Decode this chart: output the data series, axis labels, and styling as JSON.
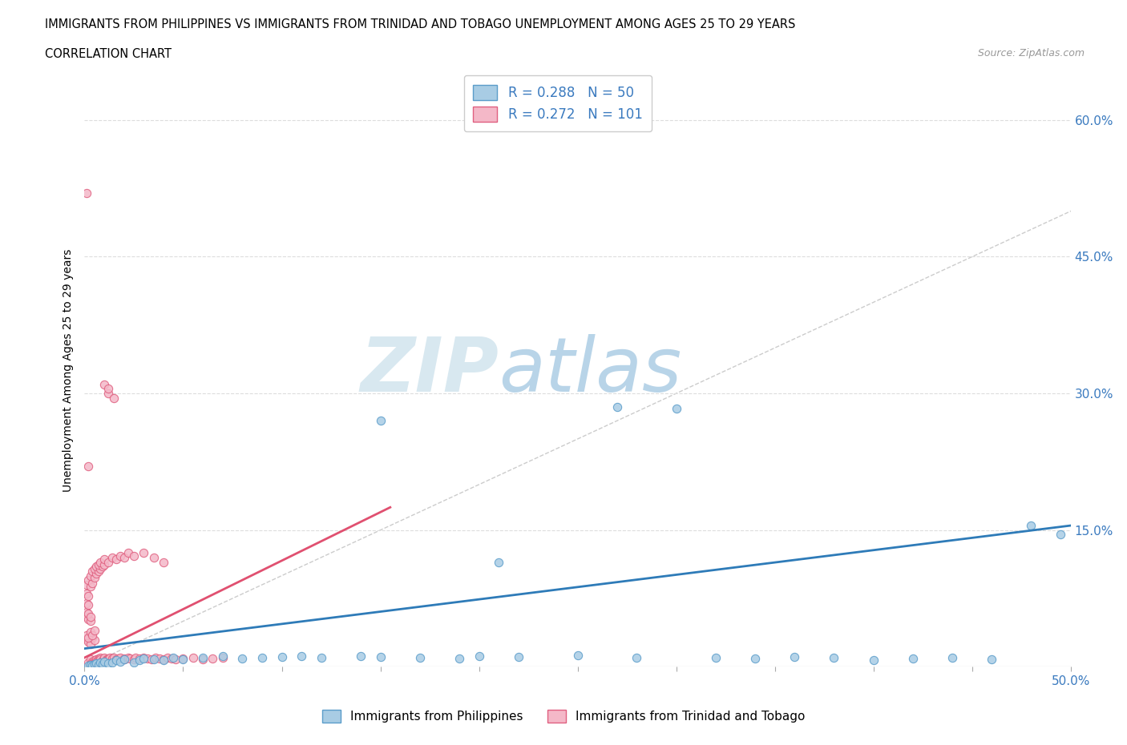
{
  "title_line1": "IMMIGRANTS FROM PHILIPPINES VS IMMIGRANTS FROM TRINIDAD AND TOBAGO UNEMPLOYMENT AMONG AGES 25 TO 29 YEARS",
  "title_line2": "CORRELATION CHART",
  "source_text": "Source: ZipAtlas.com",
  "ylabel": "Unemployment Among Ages 25 to 29 years",
  "xlim": [
    0.0,
    0.5
  ],
  "ylim": [
    0.0,
    0.65
  ],
  "xtick_vals": [
    0.0,
    0.05,
    0.1,
    0.15,
    0.2,
    0.25,
    0.3,
    0.35,
    0.4,
    0.45,
    0.5
  ],
  "ytick_vals": [
    0.0,
    0.15,
    0.3,
    0.45,
    0.6
  ],
  "color_blue": "#a8cce4",
  "color_blue_edge": "#5b9dca",
  "color_pink": "#f4b8c8",
  "color_pink_edge": "#e06080",
  "color_blue_line": "#2e7bb8",
  "color_pink_line": "#e05070",
  "color_text_blue": "#3a7abf",
  "color_watermark_gray": "#d8e8f0",
  "color_watermark_blue": "#b8d4e8",
  "R_blue": 0.288,
  "N_blue": 50,
  "R_pink": 0.272,
  "N_pink": 101,
  "legend_label_blue": "Immigrants from Philippines",
  "legend_label_pink": "Immigrants from Trinidad and Tobago",
  "blue_line_x0": 0.0,
  "blue_line_y0": 0.02,
  "blue_line_x1": 0.5,
  "blue_line_y1": 0.155,
  "pink_line_x0": 0.0,
  "pink_line_y0": 0.01,
  "pink_line_x1": 0.155,
  "pink_line_y1": 0.175,
  "phil_x": [
    0.002,
    0.003,
    0.004,
    0.005,
    0.006,
    0.007,
    0.008,
    0.009,
    0.01,
    0.012,
    0.014,
    0.016,
    0.018,
    0.02,
    0.025,
    0.028,
    0.03,
    0.035,
    0.04,
    0.045,
    0.05,
    0.06,
    0.07,
    0.08,
    0.09,
    0.1,
    0.11,
    0.12,
    0.14,
    0.15,
    0.17,
    0.19,
    0.2,
    0.22,
    0.25,
    0.27,
    0.28,
    0.3,
    0.32,
    0.34,
    0.36,
    0.38,
    0.4,
    0.42,
    0.44,
    0.46,
    0.48,
    0.495,
    0.15,
    0.21
  ],
  "phil_y": [
    0.001,
    0.002,
    0.001,
    0.003,
    0.004,
    0.002,
    0.005,
    0.003,
    0.006,
    0.004,
    0.005,
    0.007,
    0.006,
    0.008,
    0.005,
    0.007,
    0.009,
    0.008,
    0.007,
    0.01,
    0.008,
    0.01,
    0.012,
    0.009,
    0.01,
    0.011,
    0.012,
    0.01,
    0.012,
    0.011,
    0.01,
    0.009,
    0.012,
    0.011,
    0.013,
    0.285,
    0.01,
    0.283,
    0.01,
    0.009,
    0.011,
    0.01,
    0.007,
    0.009,
    0.01,
    0.008,
    0.155,
    0.145,
    0.27,
    0.115
  ],
  "trin_x": [
    0.001,
    0.002,
    0.002,
    0.003,
    0.003,
    0.004,
    0.004,
    0.005,
    0.005,
    0.006,
    0.006,
    0.007,
    0.007,
    0.008,
    0.008,
    0.009,
    0.009,
    0.01,
    0.01,
    0.011,
    0.011,
    0.012,
    0.012,
    0.013,
    0.014,
    0.015,
    0.016,
    0.017,
    0.018,
    0.02,
    0.02,
    0.022,
    0.023,
    0.025,
    0.026,
    0.028,
    0.03,
    0.032,
    0.034,
    0.036,
    0.038,
    0.04,
    0.042,
    0.044,
    0.046,
    0.05,
    0.055,
    0.06,
    0.065,
    0.07,
    0.001,
    0.002,
    0.003,
    0.004,
    0.005,
    0.001,
    0.002,
    0.003,
    0.004,
    0.005,
    0.001,
    0.002,
    0.003,
    0.001,
    0.002,
    0.003,
    0.001,
    0.002,
    0.001,
    0.002,
    0.001,
    0.003,
    0.002,
    0.004,
    0.003,
    0.005,
    0.004,
    0.006,
    0.005,
    0.007,
    0.006,
    0.008,
    0.007,
    0.009,
    0.008,
    0.01,
    0.01,
    0.012,
    0.014,
    0.016,
    0.018,
    0.02,
    0.022,
    0.025,
    0.03,
    0.035,
    0.04,
    0.012,
    0.01,
    0.015,
    0.012
  ],
  "trin_y": [
    0.52,
    0.22,
    0.005,
    0.008,
    0.003,
    0.006,
    0.004,
    0.007,
    0.005,
    0.008,
    0.006,
    0.009,
    0.007,
    0.01,
    0.008,
    0.007,
    0.006,
    0.009,
    0.01,
    0.008,
    0.007,
    0.009,
    0.008,
    0.01,
    0.009,
    0.01,
    0.008,
    0.009,
    0.01,
    0.008,
    0.009,
    0.01,
    0.009,
    0.008,
    0.01,
    0.009,
    0.01,
    0.009,
    0.008,
    0.01,
    0.009,
    0.008,
    0.01,
    0.009,
    0.008,
    0.009,
    0.01,
    0.008,
    0.009,
    0.01,
    0.03,
    0.028,
    0.025,
    0.032,
    0.029,
    0.035,
    0.032,
    0.038,
    0.035,
    0.04,
    0.055,
    0.052,
    0.05,
    0.06,
    0.058,
    0.055,
    0.07,
    0.068,
    0.08,
    0.078,
    0.09,
    0.088,
    0.095,
    0.092,
    0.1,
    0.098,
    0.105,
    0.102,
    0.108,
    0.105,
    0.11,
    0.108,
    0.112,
    0.11,
    0.115,
    0.112,
    0.118,
    0.115,
    0.12,
    0.118,
    0.122,
    0.12,
    0.125,
    0.122,
    0.125,
    0.12,
    0.115,
    0.3,
    0.31,
    0.295,
    0.305
  ]
}
